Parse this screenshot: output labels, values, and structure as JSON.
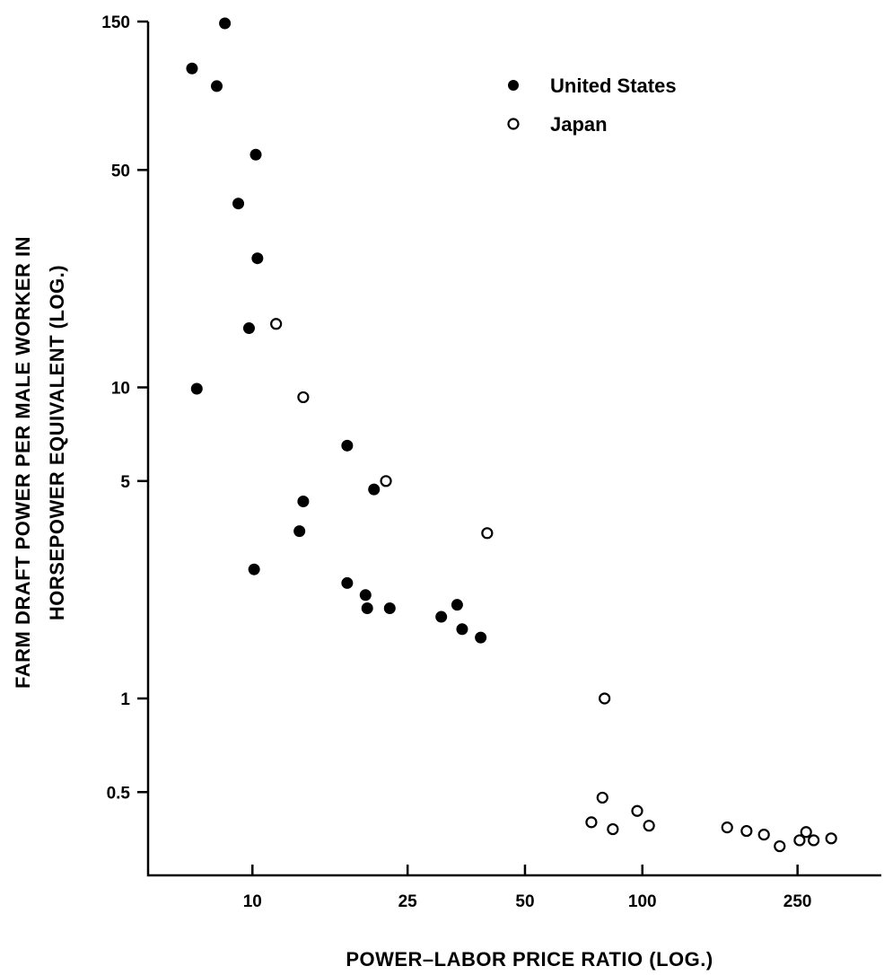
{
  "chart_data": {
    "type": "scatter",
    "title": "",
    "xlabel": "POWER–LABOR PRICE RATIO (LOG.)",
    "ylabel_line1": "FARM DRAFT POWER PER MALE WORKER IN",
    "ylabel_line2": "HORSEPOWER EQUIVALENT (LOG.)",
    "x_scale": "log",
    "y_scale": "log",
    "xlim": [
      5.4,
      410
    ],
    "ylim": [
      0.27,
      150
    ],
    "x_ticks": [
      10,
      25,
      50,
      100,
      250
    ],
    "x_tick_labels": [
      "10",
      "25",
      "50",
      "100",
      "250"
    ],
    "y_ticks": [
      150,
      50,
      10,
      5,
      1,
      0.5
    ],
    "y_tick_labels": [
      "150",
      "50",
      "10",
      "5",
      "1",
      "0.5"
    ],
    "grid": false,
    "legend_position": "top-right",
    "series": [
      {
        "name": "United States",
        "marker": "filled-circle",
        "color": "#000000",
        "points": [
          {
            "x": 8.5,
            "y": 148
          },
          {
            "x": 7.0,
            "y": 106
          },
          {
            "x": 8.1,
            "y": 93
          },
          {
            "x": 10.2,
            "y": 56
          },
          {
            "x": 9.2,
            "y": 39
          },
          {
            "x": 10.3,
            "y": 26
          },
          {
            "x": 9.8,
            "y": 15.5
          },
          {
            "x": 7.2,
            "y": 9.9
          },
          {
            "x": 17.5,
            "y": 6.5
          },
          {
            "x": 20.5,
            "y": 4.7
          },
          {
            "x": 13.5,
            "y": 4.3
          },
          {
            "x": 13.2,
            "y": 3.45
          },
          {
            "x": 10.1,
            "y": 2.6
          },
          {
            "x": 17.5,
            "y": 2.35
          },
          {
            "x": 19.5,
            "y": 2.15
          },
          {
            "x": 19.7,
            "y": 1.95
          },
          {
            "x": 22.5,
            "y": 1.95
          },
          {
            "x": 30.5,
            "y": 1.83
          },
          {
            "x": 33.5,
            "y": 2.0
          },
          {
            "x": 34.5,
            "y": 1.67
          },
          {
            "x": 38.5,
            "y": 1.57
          }
        ]
      },
      {
        "name": "Japan",
        "marker": "open-circle",
        "color": "#000000",
        "points": [
          {
            "x": 11.5,
            "y": 16
          },
          {
            "x": 13.5,
            "y": 9.3
          },
          {
            "x": 22.0,
            "y": 5.0
          },
          {
            "x": 40.0,
            "y": 3.4
          },
          {
            "x": 80.0,
            "y": 1.0
          },
          {
            "x": 79.0,
            "y": 0.48
          },
          {
            "x": 74.0,
            "y": 0.4
          },
          {
            "x": 84.0,
            "y": 0.38
          },
          {
            "x": 97.0,
            "y": 0.435
          },
          {
            "x": 104.0,
            "y": 0.39
          },
          {
            "x": 165.0,
            "y": 0.385
          },
          {
            "x": 185.0,
            "y": 0.375
          },
          {
            "x": 205.0,
            "y": 0.365
          },
          {
            "x": 225.0,
            "y": 0.335
          },
          {
            "x": 253.0,
            "y": 0.35
          },
          {
            "x": 263.0,
            "y": 0.372
          },
          {
            "x": 275.0,
            "y": 0.35
          },
          {
            "x": 305.0,
            "y": 0.355
          }
        ]
      }
    ]
  }
}
